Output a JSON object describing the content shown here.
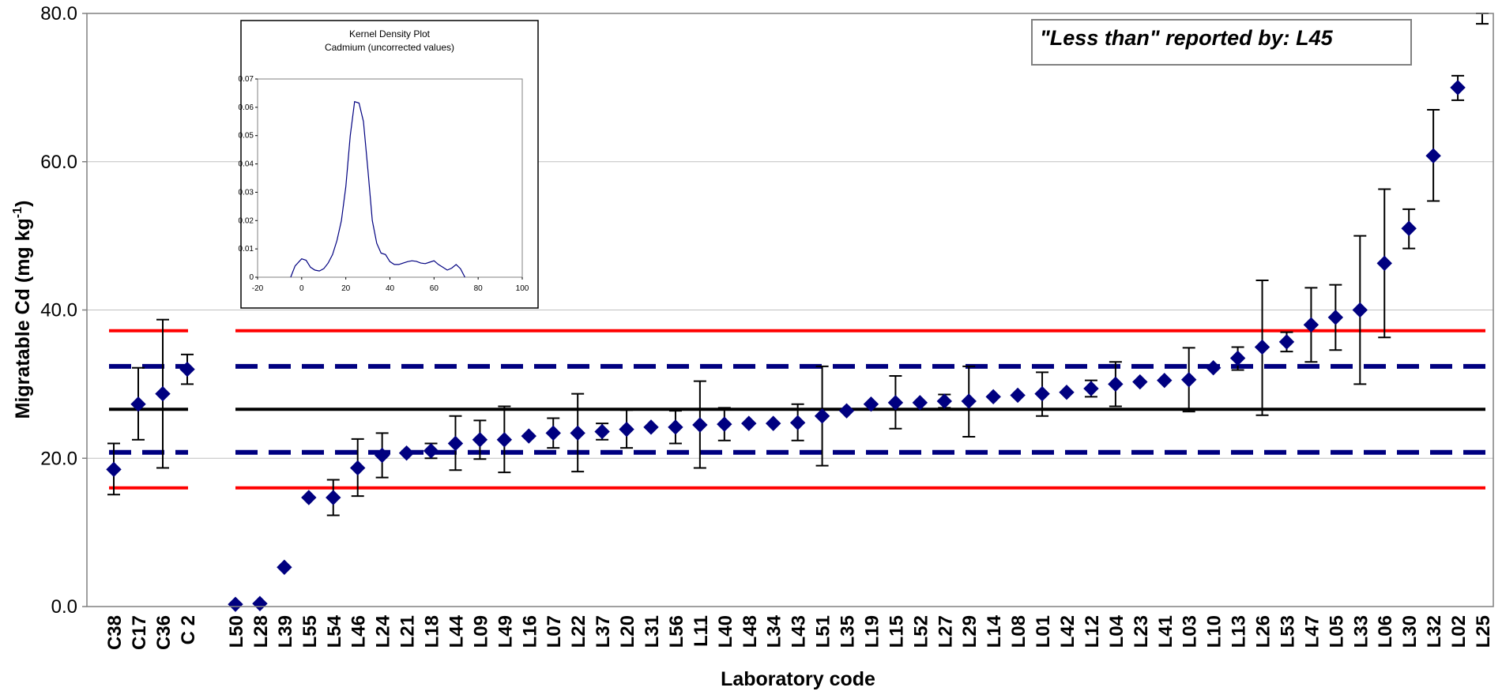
{
  "chart_data": {
    "type": "scatter",
    "xlabel": "Laboratory code",
    "ylabel_main": "Migratable Cd (mg kg",
    "ylabel_sup": "-1",
    "ylabel_close": ")",
    "ylim": [
      0,
      80
    ],
    "yticks": [
      "0.0",
      "20.0",
      "40.0",
      "60.0",
      "80.0"
    ],
    "grid": true,
    "annotation": "\"Less than\" reported by: L45",
    "reference_lines": {
      "assigned_value": 26.6,
      "z2_lower": 20.8,
      "z2_upper": 32.4,
      "z3_lower": 16.0,
      "z3_upper": 37.2
    },
    "colors": {
      "marker": "#000080",
      "assigned": "#000000",
      "dashed": "#000080",
      "limit": "#ff0000",
      "grid": "#c0c0c0"
    },
    "groups": [
      {
        "categories": [
          "C38",
          "C17",
          "C36",
          "C 2"
        ],
        "values": [
          18.5,
          27.3,
          28.7,
          32.0
        ],
        "err_low": [
          15.1,
          22.5,
          18.7,
          30.0
        ],
        "err_high": [
          22.0,
          32.2,
          38.7,
          34.0
        ]
      },
      {
        "categories": [
          "L50",
          "L28",
          "L39",
          "L55",
          "L54",
          "L46",
          "L24",
          "L21",
          "L18",
          "L44",
          "L09",
          "L49",
          "L16",
          "L07",
          "L22",
          "L37",
          "L20",
          "L31",
          "L56",
          "L11",
          "L40",
          "L48",
          "L34",
          "L43",
          "L51",
          "L35",
          "L19",
          "L15",
          "L52",
          "L27",
          "L29",
          "L14",
          "L08",
          "L01",
          "L42",
          "L12",
          "L04",
          "L23",
          "L41",
          "L03",
          "L10",
          "L13",
          "L26",
          "L53",
          "L47",
          "L05",
          "L33",
          "L06",
          "L30",
          "L32",
          "L02",
          "L25"
        ],
        "values": [
          0.3,
          0.4,
          5.3,
          14.7,
          14.7,
          18.7,
          20.4,
          20.7,
          21.0,
          22.0,
          22.5,
          22.5,
          23.0,
          23.4,
          23.4,
          23.6,
          23.9,
          24.2,
          24.2,
          24.5,
          24.6,
          24.7,
          24.7,
          24.8,
          25.7,
          26.4,
          27.3,
          27.5,
          27.5,
          27.7,
          27.7,
          28.3,
          28.5,
          28.7,
          28.9,
          29.4,
          30.0,
          30.3,
          30.5,
          30.6,
          32.2,
          33.5,
          35.0,
          35.7,
          38.0,
          39.0,
          40.0,
          46.3,
          51.0,
          60.8,
          70.0,
          null
        ],
        "err_low": [
          null,
          null,
          null,
          null,
          12.3,
          14.9,
          17.4,
          null,
          20.0,
          18.4,
          19.9,
          18.1,
          null,
          21.4,
          18.2,
          22.5,
          21.4,
          null,
          22.0,
          18.7,
          22.4,
          null,
          null,
          22.4,
          19.0,
          null,
          null,
          24.0,
          null,
          26.8,
          22.9,
          null,
          null,
          25.7,
          null,
          28.3,
          27.0,
          null,
          null,
          26.3,
          null,
          31.9,
          25.8,
          34.4,
          33.0,
          34.6,
          30.0,
          36.3,
          48.3,
          54.7,
          68.3,
          78.6
        ],
        "err_high": [
          null,
          null,
          null,
          null,
          17.1,
          22.6,
          23.4,
          null,
          22.0,
          25.7,
          25.1,
          27.0,
          null,
          25.4,
          28.7,
          24.7,
          26.5,
          null,
          26.4,
          30.4,
          26.8,
          null,
          null,
          27.3,
          32.4,
          null,
          null,
          31.1,
          null,
          28.6,
          32.4,
          null,
          null,
          31.6,
          null,
          30.5,
          33.0,
          null,
          null,
          34.9,
          null,
          35.0,
          44.0,
          37.0,
          43.0,
          43.4,
          50.0,
          56.3,
          53.6,
          67.0,
          71.6,
          80.0
        ]
      }
    ]
  },
  "inset": {
    "title_line1": "Kernel Density Plot",
    "title_line2": "Cadmium (uncorrected values)",
    "xticks": [
      "-20",
      "0",
      "20",
      "40",
      "60",
      "80",
      "100"
    ],
    "yticks": [
      "0",
      "0.01",
      "0.02",
      "0.03",
      "0.04",
      "0.05",
      "0.06",
      "0.07"
    ],
    "xlim": [
      -20,
      100
    ],
    "ylim": [
      0,
      0.07
    ],
    "curve_x": [
      -5,
      -3,
      0,
      2,
      4,
      6,
      8,
      10,
      12,
      14,
      16,
      18,
      20,
      22,
      24,
      26,
      28,
      30,
      32,
      34,
      36,
      38,
      40,
      42,
      44,
      46,
      48,
      50,
      52,
      54,
      56,
      58,
      60,
      62,
      64,
      66,
      68,
      70,
      72,
      74
    ],
    "curve_y": [
      0.0,
      0.004,
      0.0065,
      0.006,
      0.0035,
      0.0025,
      0.0022,
      0.003,
      0.005,
      0.008,
      0.013,
      0.02,
      0.032,
      0.05,
      0.062,
      0.0615,
      0.055,
      0.038,
      0.02,
      0.012,
      0.0085,
      0.008,
      0.0055,
      0.0045,
      0.0045,
      0.005,
      0.0055,
      0.0058,
      0.0056,
      0.005,
      0.0048,
      0.0053,
      0.0058,
      0.0045,
      0.0035,
      0.0025,
      0.0032,
      0.0045,
      0.003,
      0.0
    ]
  }
}
